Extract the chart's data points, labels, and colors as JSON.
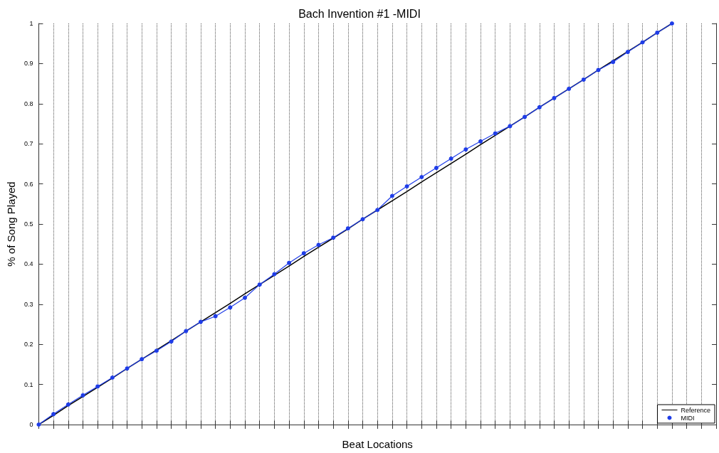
{
  "chart_data": {
    "type": "line",
    "title": "Bach Invention #1 -MIDI",
    "xlabel": "Beat Locations",
    "ylabel": "% of Song Played",
    "categories": [
      null,
      null,
      null,
      null,
      null,
      null,
      null,
      null,
      null,
      null,
      null,
      null,
      null,
      null,
      null,
      null,
      null,
      null,
      null,
      null,
      null,
      null,
      null,
      null,
      null,
      null,
      null,
      null,
      null,
      null,
      null,
      null,
      null,
      null,
      null,
      null,
      null,
      null,
      null,
      null,
      null,
      null,
      null,
      null,
      null,
      null,
      null
    ],
    "ylim": [
      0,
      1
    ],
    "yticks": [
      0,
      0.1,
      0.2,
      0.3,
      0.4,
      0.5,
      0.6,
      0.7,
      0.8,
      0.9,
      1
    ],
    "tick_labels": "y",
    "grid": "x",
    "legend": "bottom right",
    "series": [
      {
        "name": "Reference",
        "color": "#000000",
        "marker": "none",
        "values": [
          0,
          0.023,
          0.047,
          0.07,
          0.093,
          0.116,
          0.14,
          0.163,
          0.186,
          0.209,
          0.233,
          0.256,
          0.279,
          0.302,
          0.326,
          0.349,
          0.372,
          0.395,
          0.419,
          0.442,
          0.465,
          0.488,
          0.512,
          0.535,
          0.558,
          0.581,
          0.605,
          0.628,
          0.651,
          0.674,
          0.698,
          0.721,
          0.744,
          0.767,
          0.791,
          0.814,
          0.837,
          0.86,
          0.884,
          0.907,
          0.93,
          0.953,
          0.977,
          1,
          null,
          null,
          null
        ]
      },
      {
        "name": "MIDI",
        "color": "#1f3de8",
        "marker": "circle",
        "values": [
          0,
          0.026,
          0.05,
          0.073,
          0.095,
          0.117,
          0.14,
          0.163,
          0.184,
          0.207,
          0.233,
          0.256,
          0.27,
          0.292,
          0.316,
          0.349,
          0.375,
          0.403,
          0.427,
          0.448,
          0.466,
          0.489,
          0.512,
          0.535,
          0.57,
          0.594,
          0.617,
          0.64,
          0.663,
          0.686,
          0.706,
          0.726,
          0.744,
          0.767,
          0.791,
          0.814,
          0.837,
          0.86,
          0.884,
          0.904,
          0.929,
          0.953,
          0.977,
          1,
          null,
          null,
          null
        ]
      }
    ]
  }
}
